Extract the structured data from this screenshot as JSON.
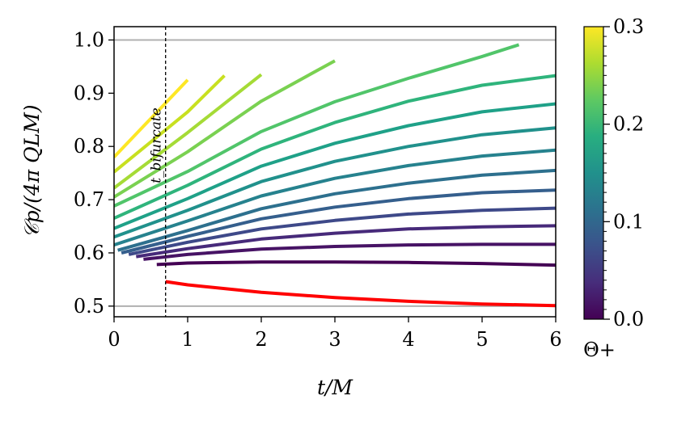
{
  "chart_data": {
    "type": "line",
    "xlabel": "t/M",
    "ylabel": "𝒞p/(4π QLM)",
    "xlim": [
      0,
      6
    ],
    "ylim": [
      0.48,
      1.025
    ],
    "xticks": [
      "0",
      "1",
      "2",
      "3",
      "4",
      "5",
      "6"
    ],
    "yticks": [
      "0.5",
      "0.6",
      "0.7",
      "0.8",
      "0.9",
      "1.0"
    ],
    "reference_lines": [
      0.5,
      1.0
    ],
    "annotation": {
      "label": "t_bifurcate",
      "x": 0.7
    },
    "colorbar": {
      "label": "Θ+",
      "range": [
        0.0,
        0.3
      ],
      "ticks": [
        "0.0",
        "0.1",
        "0.2",
        "0.3"
      ],
      "colormap": "viridis"
    },
    "series": [
      {
        "theta": 0.0,
        "color": "#ff0000",
        "x": [
          0.7,
          1,
          2,
          3,
          4,
          5,
          6
        ],
        "y": [
          0.546,
          0.54,
          0.526,
          0.516,
          0.509,
          0.504,
          0.501
        ]
      },
      {
        "theta": 0.02,
        "color": "#440154",
        "x": [
          0.58,
          1,
          2,
          3,
          4,
          5,
          6
        ],
        "y": [
          0.578,
          0.581,
          0.583,
          0.583,
          0.582,
          0.58,
          0.577
        ]
      },
      {
        "theta": 0.04,
        "color": "#471365",
        "x": [
          0.4,
          1,
          2,
          3,
          4,
          5,
          6
        ],
        "y": [
          0.588,
          0.597,
          0.607,
          0.612,
          0.615,
          0.616,
          0.616
        ]
      },
      {
        "theta": 0.06,
        "color": "#472a7a",
        "x": [
          0.3,
          1,
          2,
          3,
          4,
          5,
          6
        ],
        "y": [
          0.593,
          0.608,
          0.626,
          0.637,
          0.645,
          0.649,
          0.651
        ]
      },
      {
        "theta": 0.08,
        "color": "#3e4989",
        "x": [
          0.2,
          1,
          2,
          3,
          4,
          5,
          6
        ],
        "y": [
          0.597,
          0.62,
          0.645,
          0.661,
          0.673,
          0.68,
          0.684
        ]
      },
      {
        "theta": 0.1,
        "color": "#355f8d",
        "x": [
          0.1,
          1,
          2,
          3,
          4,
          5,
          6
        ],
        "y": [
          0.6,
          0.631,
          0.664,
          0.686,
          0.702,
          0.713,
          0.718
        ]
      },
      {
        "theta": 0.12,
        "color": "#2d708e",
        "x": [
          0.05,
          1,
          2,
          3,
          4,
          5,
          6
        ],
        "y": [
          0.605,
          0.642,
          0.683,
          0.711,
          0.731,
          0.746,
          0.755
        ]
      },
      {
        "theta": 0.14,
        "color": "#26828e",
        "x": [
          0,
          1,
          2,
          3,
          4,
          5,
          6
        ],
        "y": [
          0.615,
          0.66,
          0.707,
          0.74,
          0.764,
          0.782,
          0.793
        ]
      },
      {
        "theta": 0.16,
        "color": "#21918c",
        "x": [
          0,
          1,
          2,
          3,
          4,
          5,
          6
        ],
        "y": [
          0.63,
          0.68,
          0.734,
          0.772,
          0.8,
          0.822,
          0.835
        ]
      },
      {
        "theta": 0.18,
        "color": "#1fa188",
        "x": [
          0,
          1,
          2,
          3,
          4,
          5,
          6
        ],
        "y": [
          0.646,
          0.702,
          0.763,
          0.806,
          0.839,
          0.865,
          0.88
        ]
      },
      {
        "theta": 0.2,
        "color": "#2fb47c",
        "x": [
          0,
          1,
          2,
          3,
          4,
          5,
          6
        ],
        "y": [
          0.665,
          0.727,
          0.795,
          0.845,
          0.885,
          0.915,
          0.933
        ]
      },
      {
        "theta": 0.22,
        "color": "#51c56a",
        "x": [
          0,
          1,
          2,
          3,
          4,
          5,
          5.5
        ],
        "y": [
          0.688,
          0.753,
          0.828,
          0.884,
          0.928,
          0.969,
          0.991
        ]
      },
      {
        "theta": 0.24,
        "color": "#7ad151",
        "x": [
          0,
          1,
          2,
          3
        ],
        "y": [
          0.705,
          0.79,
          0.885,
          0.961
        ]
      },
      {
        "theta": 0.26,
        "color": "#a5db36",
        "x": [
          0,
          1,
          2
        ],
        "y": [
          0.722,
          0.826,
          0.935
        ]
      },
      {
        "theta": 0.28,
        "color": "#c8e020",
        "x": [
          0,
          1,
          1.5
        ],
        "y": [
          0.752,
          0.865,
          0.933
        ]
      },
      {
        "theta": 0.3,
        "color": "#fde725",
        "x": [
          0,
          1
        ],
        "y": [
          0.78,
          0.925
        ]
      }
    ]
  }
}
